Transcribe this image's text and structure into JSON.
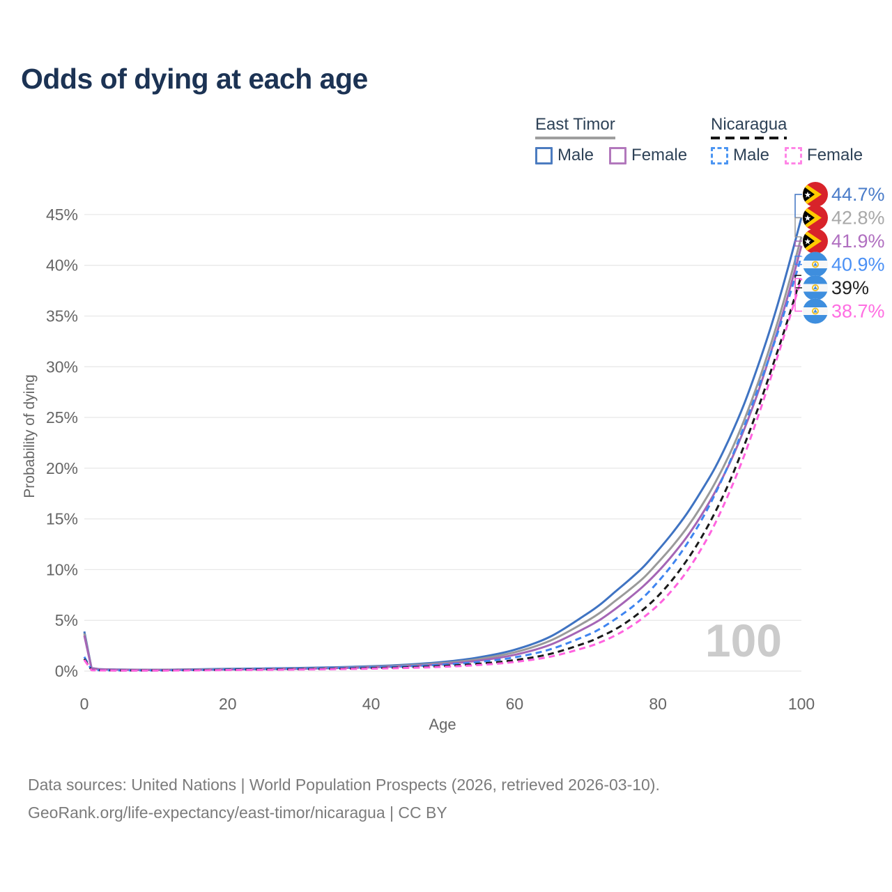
{
  "page": {
    "title": "Odds of dying at each age"
  },
  "legend": {
    "groups": [
      {
        "name": "East Timor",
        "line_style": "solid",
        "underline_color": "#9e9e9e",
        "items": [
          {
            "label": "Male",
            "color": "#4c7cc0",
            "dashed": false
          },
          {
            "label": "Female",
            "color": "#b278bc",
            "dashed": false
          }
        ]
      },
      {
        "name": "Nicaragua",
        "line_style": "dashed",
        "underline_color": "#161616",
        "items": [
          {
            "label": "Male",
            "color": "#4b95f2",
            "dashed": true
          },
          {
            "label": "Female",
            "color": "#ff85e6",
            "dashed": true
          }
        ]
      }
    ]
  },
  "chart_data": {
    "type": "line",
    "title": "Odds of dying at each age",
    "xlabel": "Age",
    "ylabel": "Probability of dying",
    "xlim": [
      0,
      100
    ],
    "ylim_percent": [
      0,
      47
    ],
    "grid": "horizontal",
    "legend_position": "top-right",
    "watermark": "100",
    "x_ticks": [
      0,
      20,
      40,
      60,
      80,
      100
    ],
    "y_tick_values": [
      0,
      5,
      10,
      15,
      20,
      25,
      30,
      35,
      40,
      45
    ],
    "y_ticks": [
      "0%",
      "5%",
      "10%",
      "15%",
      "20%",
      "25%",
      "30%",
      "35%",
      "40%",
      "45%"
    ],
    "x": [
      0,
      1,
      2,
      5,
      10,
      15,
      20,
      25,
      30,
      35,
      40,
      45,
      50,
      55,
      60,
      65,
      70,
      72,
      74,
      76,
      78,
      80,
      82,
      84,
      86,
      88,
      90,
      92,
      94,
      96,
      98,
      100
    ],
    "series": [
      {
        "name": "East Timor Male",
        "country": "East Timor",
        "sex": "Male",
        "color": "#3f73c2",
        "dashed": false,
        "flag": "east-timor",
        "end_label": "44.7%",
        "label_color": "#4a7cc9",
        "values": [
          3.9,
          0.3,
          0.2,
          0.15,
          0.13,
          0.17,
          0.22,
          0.26,
          0.31,
          0.38,
          0.48,
          0.64,
          0.9,
          1.35,
          2.1,
          3.4,
          5.6,
          6.6,
          7.8,
          9.0,
          10.3,
          11.9,
          13.6,
          15.5,
          17.7,
          20.1,
          23.0,
          26.3,
          30.2,
          34.5,
          39.4,
          44.7
        ]
      },
      {
        "name": "East Timor (all)",
        "country": "East Timor",
        "sex": "Both",
        "color": "#9a9a9a",
        "dashed": false,
        "flag": "east-timor",
        "end_label": "42.8%",
        "label_color": "#a8a8a8",
        "values": [
          3.7,
          0.28,
          0.19,
          0.14,
          0.12,
          0.15,
          0.19,
          0.23,
          0.27,
          0.33,
          0.42,
          0.56,
          0.79,
          1.18,
          1.85,
          3.0,
          4.9,
          5.8,
          6.9,
          8.0,
          9.2,
          10.7,
          12.3,
          14.1,
          16.2,
          18.6,
          21.4,
          24.7,
          28.5,
          32.8,
          37.6,
          42.8
        ]
      },
      {
        "name": "East Timor Female",
        "country": "East Timor",
        "sex": "Female",
        "color": "#a565b5",
        "dashed": false,
        "flag": "east-timor",
        "end_label": "41.9%",
        "label_color": "#b06fc0",
        "values": [
          3.5,
          0.26,
          0.18,
          0.13,
          0.11,
          0.13,
          0.16,
          0.19,
          0.23,
          0.29,
          0.37,
          0.49,
          0.69,
          1.03,
          1.6,
          2.6,
          4.3,
          5.1,
          6.1,
          7.2,
          8.4,
          9.8,
          11.4,
          13.2,
          15.3,
          17.7,
          20.5,
          23.8,
          27.6,
          32.0,
          36.7,
          41.9
        ]
      },
      {
        "name": "Nicaragua Male",
        "country": "Nicaragua",
        "sex": "Male",
        "color": "#3f85f0",
        "dashed": true,
        "flag": "nicaragua",
        "end_label": "40.9%",
        "label_color": "#4a90f5",
        "values": [
          1.4,
          0.12,
          0.09,
          0.07,
          0.07,
          0.11,
          0.17,
          0.21,
          0.25,
          0.3,
          0.37,
          0.47,
          0.63,
          0.9,
          1.35,
          2.15,
          3.5,
          4.2,
          5.1,
          6.1,
          7.3,
          8.8,
          10.5,
          12.5,
          14.8,
          17.5,
          20.6,
          24.1,
          27.9,
          31.9,
          36.2,
          40.9
        ]
      },
      {
        "name": "Nicaragua (all)",
        "country": "Nicaragua",
        "sex": "Both",
        "color": "#1a1a1a",
        "dashed": true,
        "flag": "nicaragua",
        "end_label": "39%",
        "label_color": "#222222",
        "values": [
          1.2,
          0.1,
          0.08,
          0.06,
          0.06,
          0.09,
          0.13,
          0.16,
          0.19,
          0.23,
          0.29,
          0.37,
          0.5,
          0.72,
          1.08,
          1.7,
          2.8,
          3.4,
          4.1,
          5.0,
          6.1,
          7.4,
          9.0,
          10.9,
          13.1,
          15.7,
          18.7,
          22.2,
          26.0,
          30.1,
          34.4,
          39.0
        ]
      },
      {
        "name": "Nicaragua Female",
        "country": "Nicaragua",
        "sex": "Female",
        "color": "#ff63df",
        "dashed": true,
        "flag": "nicaragua",
        "end_label": "38.7%",
        "label_color": "#ff6ee2",
        "values": [
          1.1,
          0.09,
          0.07,
          0.05,
          0.05,
          0.07,
          0.1,
          0.12,
          0.15,
          0.19,
          0.24,
          0.31,
          0.42,
          0.6,
          0.9,
          1.42,
          2.35,
          2.85,
          3.5,
          4.3,
          5.3,
          6.5,
          8.0,
          9.8,
          12.0,
          14.6,
          17.7,
          21.2,
          25.2,
          29.5,
          34.0,
          38.7
        ]
      }
    ]
  },
  "footer": {
    "line1": "Data sources: United Nations | World Population Prospects (2026, retrieved 2026-03-10).",
    "line2": "GeoRank.org/life-expectancy/east-timor/nicaragua | CC BY"
  },
  "colors": {
    "title": "#1c3354",
    "axis_text": "#666666",
    "gridline": "#e8e8e8",
    "watermark": "#cbcbcb",
    "footer_text": "#7b7b7b",
    "legend_text": "#2e4257"
  }
}
